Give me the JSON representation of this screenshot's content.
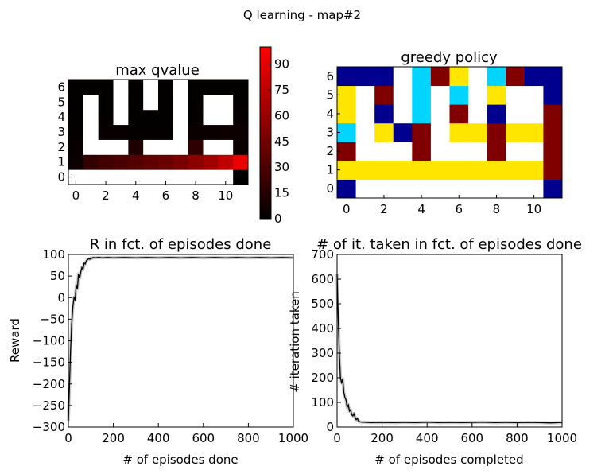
{
  "suptitle": "Q learning - map#2",
  "chart_data": [
    {
      "type": "heatmap",
      "title": "max qvalue",
      "xlabel": "",
      "ylabel": "",
      "colormap": "hot",
      "xticks": [
        0,
        2,
        4,
        6,
        8,
        10
      ],
      "yticks": [
        0,
        1,
        2,
        3,
        4,
        5,
        6
      ],
      "colorbar": {
        "min": 0,
        "max": 100,
        "ticks": [
          0,
          15,
          30,
          45,
          60,
          75,
          90
        ]
      },
      "wall_value": 99,
      "rows": [
        [
          99,
          99,
          99,
          99,
          99,
          99,
          99,
          99,
          99,
          99,
          99,
          0
        ],
        [
          5,
          20,
          25,
          29,
          33,
          38,
          42,
          48,
          55,
          63,
          75,
          92
        ],
        [
          3,
          99,
          99,
          99,
          12,
          99,
          99,
          99,
          18,
          99,
          99,
          4
        ],
        [
          2,
          99,
          3,
          3,
          2,
          2,
          2,
          99,
          4,
          4,
          6,
          5
        ],
        [
          1,
          99,
          2,
          99,
          1,
          1,
          1,
          99,
          2,
          99,
          99,
          3
        ],
        [
          1,
          99,
          1,
          99,
          1,
          99,
          1,
          99,
          1,
          99,
          99,
          2
        ],
        [
          1,
          1,
          1,
          99,
          1,
          99,
          1,
          99,
          1,
          1,
          1,
          1
        ]
      ]
    },
    {
      "type": "heatmap",
      "title": "greedy policy",
      "xlabel": "",
      "ylabel": "",
      "colormap": "jet-categorical",
      "xticks": [
        0,
        2,
        4,
        6,
        8,
        10
      ],
      "yticks": [
        0,
        1,
        2,
        3,
        4,
        5,
        6
      ],
      "palette": {
        "0": "#00008f",
        "1": "#00d4ff",
        "2": "#ffe600",
        "3": "#800000",
        "4": "#ffffff"
      },
      "rows": [
        [
          0,
          4,
          4,
          4,
          4,
          4,
          4,
          4,
          4,
          4,
          4,
          0
        ],
        [
          2,
          2,
          2,
          2,
          2,
          2,
          2,
          2,
          2,
          2,
          2,
          3
        ],
        [
          3,
          4,
          4,
          4,
          3,
          4,
          4,
          4,
          3,
          4,
          4,
          3
        ],
        [
          1,
          4,
          2,
          0,
          3,
          4,
          2,
          2,
          3,
          2,
          2,
          3
        ],
        [
          2,
          4,
          0,
          4,
          1,
          4,
          3,
          4,
          0,
          4,
          4,
          3
        ],
        [
          2,
          4,
          3,
          4,
          1,
          4,
          1,
          4,
          2,
          4,
          4,
          0
        ],
        [
          0,
          0,
          0,
          4,
          1,
          3,
          2,
          4,
          1,
          3,
          0,
          0
        ]
      ]
    },
    {
      "type": "line",
      "title": "R in fct. of episodes done",
      "xlabel": "# of episodes done",
      "ylabel": "Reward",
      "xlim": [
        0,
        1000
      ],
      "ylim": [
        -300,
        100
      ],
      "xticks": [
        0,
        200,
        400,
        600,
        800,
        1000
      ],
      "yticks": [
        -300,
        -250,
        -200,
        -150,
        -100,
        -50,
        0,
        50,
        100
      ],
      "series": [
        {
          "role": "mean",
          "color": "#000000",
          "x": [
            0,
            5,
            10,
            15,
            20,
            25,
            30,
            35,
            40,
            45,
            50,
            55,
            60,
            65,
            70,
            75,
            80,
            85,
            90,
            95,
            100,
            105,
            110,
            120,
            130,
            140,
            150,
            175,
            200,
            250,
            300,
            350,
            400,
            450,
            500,
            550,
            600,
            650,
            700,
            750,
            800,
            850,
            900,
            950,
            1000
          ],
          "y": [
            -285,
            -200,
            -120,
            -60,
            -20,
            0,
            -5,
            30,
            20,
            55,
            45,
            60,
            70,
            65,
            80,
            78,
            85,
            88,
            90,
            89,
            92,
            91,
            93,
            92,
            93,
            93,
            92,
            93,
            92,
            93,
            92,
            93,
            92,
            93,
            92,
            93,
            92,
            93,
            92,
            93,
            92,
            93,
            92,
            93,
            92
          ]
        }
      ]
    },
    {
      "type": "line",
      "title": "# of it. taken in fct. of episodes done",
      "xlabel": "# of episodes completed",
      "ylabel": "# iteration taken",
      "xlim": [
        0,
        1000
      ],
      "ylim": [
        0,
        700
      ],
      "xticks": [
        0,
        200,
        400,
        600,
        800,
        1000
      ],
      "yticks": [
        0,
        100,
        200,
        300,
        400,
        500,
        600,
        700
      ],
      "series": [
        {
          "role": "mean",
          "color": "#000000",
          "x": [
            0,
            5,
            10,
            15,
            20,
            25,
            30,
            35,
            40,
            45,
            50,
            55,
            60,
            65,
            70,
            75,
            80,
            85,
            90,
            95,
            100,
            110,
            120,
            150,
            200,
            250,
            300,
            350,
            400,
            450,
            500,
            550,
            600,
            650,
            700,
            750,
            800,
            850,
            900,
            950,
            1000
          ],
          "y": [
            620,
            450,
            300,
            200,
            180,
            195,
            140,
            120,
            110,
            80,
            90,
            65,
            70,
            50,
            45,
            55,
            40,
            30,
            35,
            25,
            22,
            20,
            20,
            18,
            19,
            18,
            19,
            18,
            20,
            18,
            19,
            18,
            19,
            20,
            18,
            19,
            18,
            19,
            18,
            17,
            19
          ]
        }
      ]
    }
  ]
}
